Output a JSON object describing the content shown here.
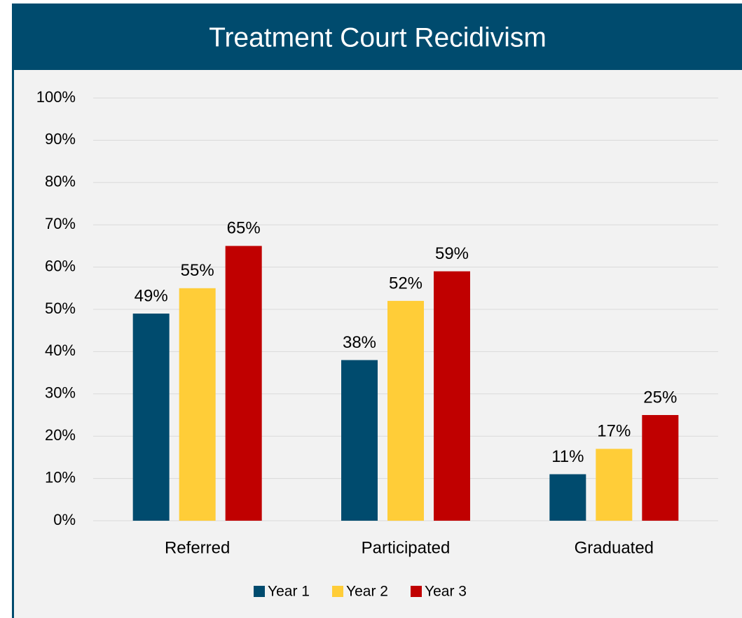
{
  "chart_data": {
    "type": "bar",
    "title": "Treatment Court Recidivism",
    "categories": [
      "Referred",
      "Participated",
      "Graduated"
    ],
    "series": [
      {
        "name": "Year 1",
        "color": "#004b6e",
        "values": [
          49,
          38,
          11
        ],
        "value_labels": [
          "49%",
          "38%",
          "11%"
        ]
      },
      {
        "name": "Year 2",
        "color": "#ffcd38",
        "values": [
          55,
          52,
          17
        ],
        "value_labels": [
          "55%",
          "52%",
          "17%"
        ]
      },
      {
        "name": "Year 3",
        "color": "#c00000",
        "values": [
          65,
          59,
          25
        ],
        "value_labels": [
          "65%",
          "59%",
          "25%"
        ]
      }
    ],
    "ylim": [
      0,
      100
    ],
    "yticks": [
      {
        "value": 0,
        "label": "0%"
      },
      {
        "value": 10,
        "label": "10%"
      },
      {
        "value": 20,
        "label": "20%"
      },
      {
        "value": 30,
        "label": "30%"
      },
      {
        "value": 40,
        "label": "40%"
      },
      {
        "value": 50,
        "label": "50%"
      },
      {
        "value": 60,
        "label": "60%"
      },
      {
        "value": 70,
        "label": "70%"
      },
      {
        "value": 80,
        "label": "80%"
      },
      {
        "value": 90,
        "label": "90%"
      },
      {
        "value": 100,
        "label": "100%"
      }
    ],
    "grid": true,
    "legend": "bottom"
  }
}
